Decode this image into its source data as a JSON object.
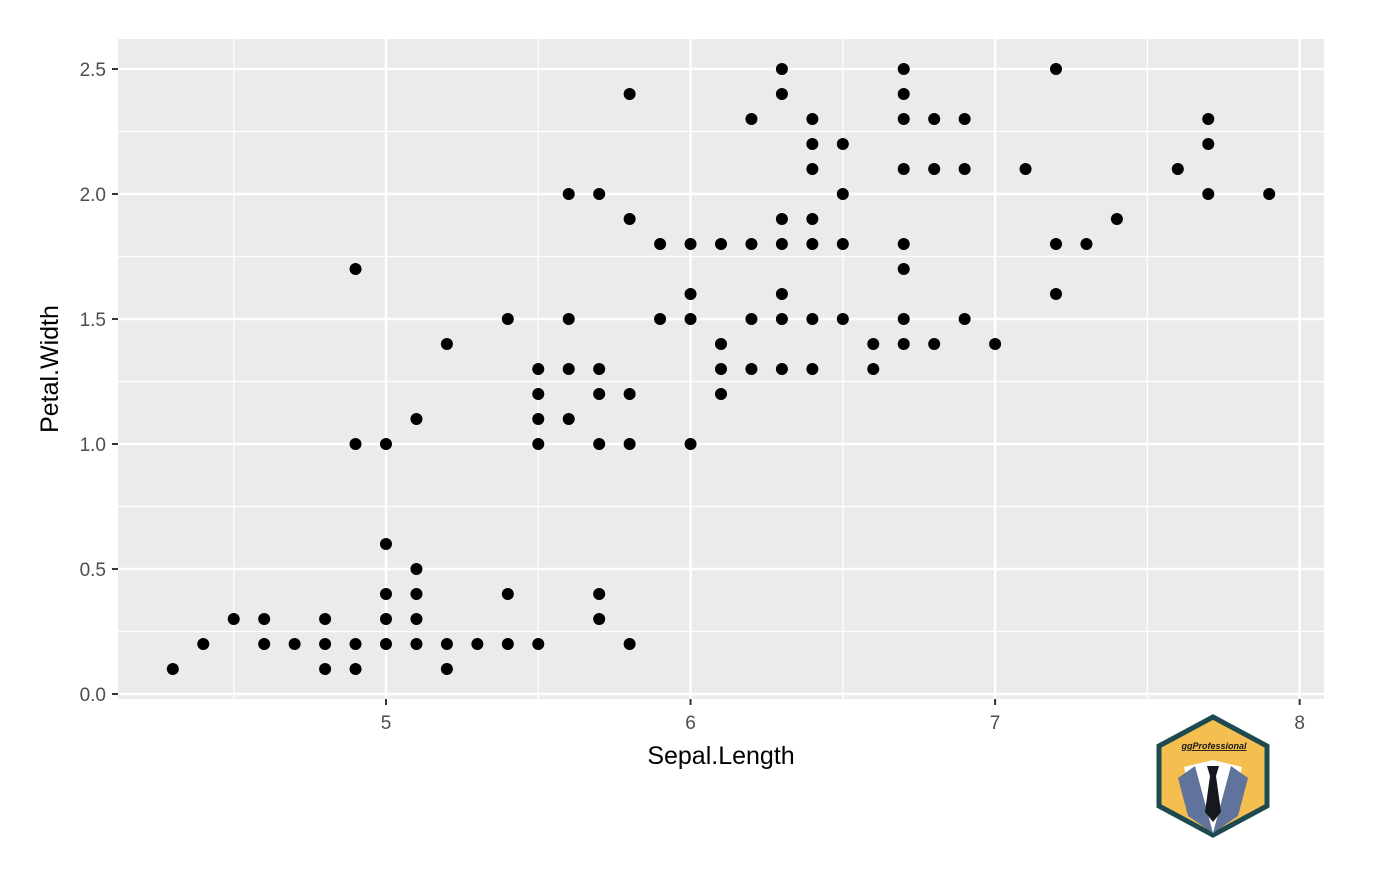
{
  "chart_data": {
    "type": "scatter",
    "title": "",
    "xlabel": "Sepal.Length",
    "ylabel": "Petal.Width",
    "xlim": [
      4.12,
      8.08
    ],
    "ylim": [
      -0.02,
      2.62
    ],
    "xticks": [
      5,
      6,
      7,
      8
    ],
    "xtick_labels": [
      "5",
      "6",
      "7",
      "8"
    ],
    "yticks": [
      0.0,
      0.5,
      1.0,
      1.5,
      2.0,
      2.5
    ],
    "ytick_labels": [
      "0.0",
      "0.5",
      "1.0",
      "1.5",
      "2.0",
      "2.5"
    ],
    "grid": true,
    "background": "#ebebeb",
    "grid_color": "#ffffff",
    "point_color": "#000000",
    "points": [
      [
        4.3,
        0.1
      ],
      [
        4.4,
        0.2
      ],
      [
        4.5,
        0.3
      ],
      [
        4.6,
        0.3
      ],
      [
        4.6,
        0.2
      ],
      [
        4.7,
        0.2
      ],
      [
        4.8,
        0.3
      ],
      [
        4.8,
        0.2
      ],
      [
        4.8,
        0.1
      ],
      [
        4.9,
        0.2
      ],
      [
        4.9,
        0.1
      ],
      [
        4.9,
        1.0
      ],
      [
        4.9,
        1.7
      ],
      [
        5.0,
        0.6
      ],
      [
        5.0,
        0.4
      ],
      [
        5.0,
        0.3
      ],
      [
        5.0,
        0.2
      ],
      [
        5.0,
        1.0
      ],
      [
        5.1,
        0.5
      ],
      [
        5.1,
        0.4
      ],
      [
        5.1,
        0.3
      ],
      [
        5.1,
        0.2
      ],
      [
        5.1,
        1.1
      ],
      [
        5.2,
        0.2
      ],
      [
        5.2,
        0.1
      ],
      [
        5.2,
        1.4
      ],
      [
        5.3,
        0.2
      ],
      [
        5.4,
        0.4
      ],
      [
        5.4,
        0.2
      ],
      [
        5.4,
        1.5
      ],
      [
        5.5,
        0.2
      ],
      [
        5.5,
        1.3
      ],
      [
        5.5,
        1.2
      ],
      [
        5.5,
        1.1
      ],
      [
        5.5,
        1.0
      ],
      [
        5.6,
        2.0
      ],
      [
        5.6,
        1.5
      ],
      [
        5.6,
        1.3
      ],
      [
        5.6,
        1.1
      ],
      [
        5.7,
        2.0
      ],
      [
        5.7,
        1.3
      ],
      [
        5.7,
        1.2
      ],
      [
        5.7,
        1.0
      ],
      [
        5.7,
        0.4
      ],
      [
        5.7,
        0.3
      ],
      [
        5.8,
        2.4
      ],
      [
        5.8,
        1.9
      ],
      [
        5.8,
        1.2
      ],
      [
        5.8,
        1.0
      ],
      [
        5.8,
        0.2
      ],
      [
        5.9,
        1.8
      ],
      [
        5.9,
        1.5
      ],
      [
        6.0,
        1.8
      ],
      [
        6.0,
        1.6
      ],
      [
        6.0,
        1.5
      ],
      [
        6.0,
        1.0
      ],
      [
        6.1,
        1.8
      ],
      [
        6.1,
        1.4
      ],
      [
        6.1,
        1.3
      ],
      [
        6.1,
        1.2
      ],
      [
        6.2,
        2.3
      ],
      [
        6.2,
        1.8
      ],
      [
        6.2,
        1.5
      ],
      [
        6.2,
        1.3
      ],
      [
        6.3,
        2.5
      ],
      [
        6.3,
        2.4
      ],
      [
        6.3,
        1.9
      ],
      [
        6.3,
        1.8
      ],
      [
        6.3,
        1.6
      ],
      [
        6.3,
        1.5
      ],
      [
        6.3,
        1.3
      ],
      [
        6.4,
        2.3
      ],
      [
        6.4,
        2.2
      ],
      [
        6.4,
        2.1
      ],
      [
        6.4,
        1.9
      ],
      [
        6.4,
        1.8
      ],
      [
        6.4,
        1.5
      ],
      [
        6.4,
        1.3
      ],
      [
        6.5,
        2.2
      ],
      [
        6.5,
        2.0
      ],
      [
        6.5,
        1.8
      ],
      [
        6.5,
        1.5
      ],
      [
        6.6,
        1.4
      ],
      [
        6.6,
        1.3
      ],
      [
        6.7,
        2.5
      ],
      [
        6.7,
        2.4
      ],
      [
        6.7,
        2.3
      ],
      [
        6.7,
        2.1
      ],
      [
        6.7,
        1.8
      ],
      [
        6.7,
        1.7
      ],
      [
        6.7,
        1.5
      ],
      [
        6.7,
        1.4
      ],
      [
        6.8,
        2.3
      ],
      [
        6.8,
        2.1
      ],
      [
        6.8,
        1.4
      ],
      [
        6.9,
        2.3
      ],
      [
        6.9,
        2.1
      ],
      [
        6.9,
        1.5
      ],
      [
        7.0,
        1.4
      ],
      [
        7.1,
        2.1
      ],
      [
        7.2,
        2.5
      ],
      [
        7.2,
        1.8
      ],
      [
        7.2,
        1.6
      ],
      [
        7.3,
        1.8
      ],
      [
        7.4,
        1.9
      ],
      [
        7.6,
        2.1
      ],
      [
        7.7,
        2.3
      ],
      [
        7.7,
        2.2
      ],
      [
        7.7,
        2.0
      ],
      [
        7.9,
        2.0
      ]
    ]
  },
  "logo": {
    "text": "ggProfessional",
    "colors": {
      "border": "#1d4a50",
      "fill": "#f5bf4f",
      "suit": "#5f739b",
      "shirt": "#ffffff",
      "tie": "#15181c"
    }
  }
}
